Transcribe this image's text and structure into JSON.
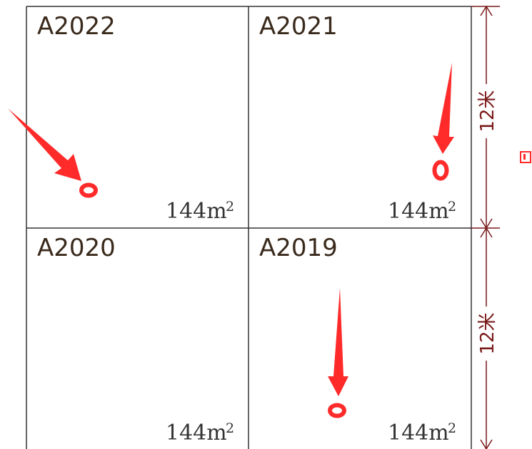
{
  "colors": {
    "grid_line": "#333333",
    "dimension_line": "#7a1a1a",
    "marker": "#ff2a2a"
  },
  "plots": [
    {
      "id": "A2022",
      "area_value": "144m",
      "area_sup": "2"
    },
    {
      "id": "A2021",
      "area_value": "144m",
      "area_sup": "2"
    },
    {
      "id": "A2020",
      "area_value": "144m",
      "area_sup": "2"
    },
    {
      "id": "A2019",
      "area_value": "144m",
      "area_sup": "2"
    }
  ],
  "dimensions": [
    {
      "label": "12米"
    },
    {
      "label": "12米"
    }
  ]
}
